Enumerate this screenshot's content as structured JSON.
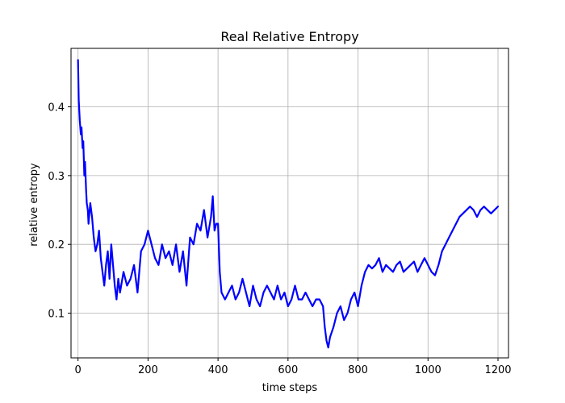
{
  "chart_data": {
    "type": "line",
    "title": "Real Relative Entropy",
    "xlabel": "time steps",
    "ylabel": "relative entropy",
    "xlim": [
      -20,
      1230
    ],
    "ylim": [
      0.035,
      0.485
    ],
    "xticks": [
      0,
      200,
      400,
      600,
      800,
      1000,
      1200
    ],
    "yticks": [
      0.1,
      0.2,
      0.3,
      0.4
    ],
    "grid": true,
    "line_color": "#0000ff",
    "grid_color": "#b0b0b0",
    "series": [
      {
        "x": [
          0,
          2,
          5,
          8,
          10,
          13,
          15,
          18,
          20,
          23,
          25,
          28,
          30,
          35,
          40,
          45,
          50,
          55,
          60,
          65,
          70,
          75,
          80,
          85,
          90,
          95,
          100,
          105,
          110,
          115,
          120,
          130,
          140,
          150,
          160,
          170,
          180,
          190,
          200,
          210,
          220,
          230,
          240,
          250,
          260,
          270,
          280,
          290,
          300,
          310,
          320,
          330,
          340,
          350,
          360,
          370,
          380,
          385,
          390,
          395,
          400,
          405,
          410,
          420,
          430,
          440,
          450,
          460,
          470,
          480,
          490,
          500,
          510,
          520,
          530,
          540,
          550,
          560,
          570,
          580,
          590,
          600,
          610,
          620,
          630,
          640,
          650,
          660,
          670,
          680,
          690,
          700,
          705,
          710,
          715,
          720,
          730,
          740,
          750,
          760,
          770,
          780,
          790,
          800,
          810,
          820,
          830,
          840,
          850,
          860,
          870,
          880,
          890,
          900,
          910,
          920,
          930,
          940,
          950,
          960,
          970,
          980,
          990,
          1000,
          1010,
          1020,
          1030,
          1040,
          1050,
          1060,
          1070,
          1080,
          1090,
          1100,
          1110,
          1120,
          1130,
          1140,
          1150,
          1160,
          1170,
          1180,
          1190,
          1200
        ],
        "y": [
          0.468,
          0.41,
          0.38,
          0.36,
          0.37,
          0.34,
          0.35,
          0.3,
          0.32,
          0.28,
          0.26,
          0.25,
          0.23,
          0.26,
          0.24,
          0.21,
          0.19,
          0.2,
          0.22,
          0.18,
          0.16,
          0.14,
          0.17,
          0.19,
          0.15,
          0.2,
          0.17,
          0.14,
          0.12,
          0.15,
          0.13,
          0.16,
          0.14,
          0.15,
          0.17,
          0.13,
          0.19,
          0.2,
          0.22,
          0.2,
          0.18,
          0.17,
          0.2,
          0.18,
          0.19,
          0.17,
          0.2,
          0.16,
          0.19,
          0.14,
          0.21,
          0.2,
          0.23,
          0.22,
          0.25,
          0.21,
          0.24,
          0.27,
          0.22,
          0.23,
          0.23,
          0.16,
          0.13,
          0.12,
          0.13,
          0.14,
          0.12,
          0.13,
          0.15,
          0.13,
          0.11,
          0.14,
          0.12,
          0.11,
          0.13,
          0.14,
          0.13,
          0.12,
          0.14,
          0.12,
          0.13,
          0.11,
          0.12,
          0.14,
          0.12,
          0.12,
          0.13,
          0.12,
          0.11,
          0.12,
          0.12,
          0.11,
          0.08,
          0.06,
          0.05,
          0.065,
          0.08,
          0.1,
          0.11,
          0.09,
          0.1,
          0.12,
          0.13,
          0.11,
          0.14,
          0.16,
          0.17,
          0.165,
          0.17,
          0.18,
          0.16,
          0.17,
          0.165,
          0.16,
          0.17,
          0.175,
          0.16,
          0.165,
          0.17,
          0.175,
          0.16,
          0.17,
          0.18,
          0.17,
          0.16,
          0.155,
          0.17,
          0.19,
          0.2,
          0.21,
          0.22,
          0.23,
          0.24,
          0.245,
          0.25,
          0.255,
          0.25,
          0.24,
          0.25,
          0.255,
          0.25,
          0.245,
          0.25,
          0.255
        ]
      }
    ]
  }
}
